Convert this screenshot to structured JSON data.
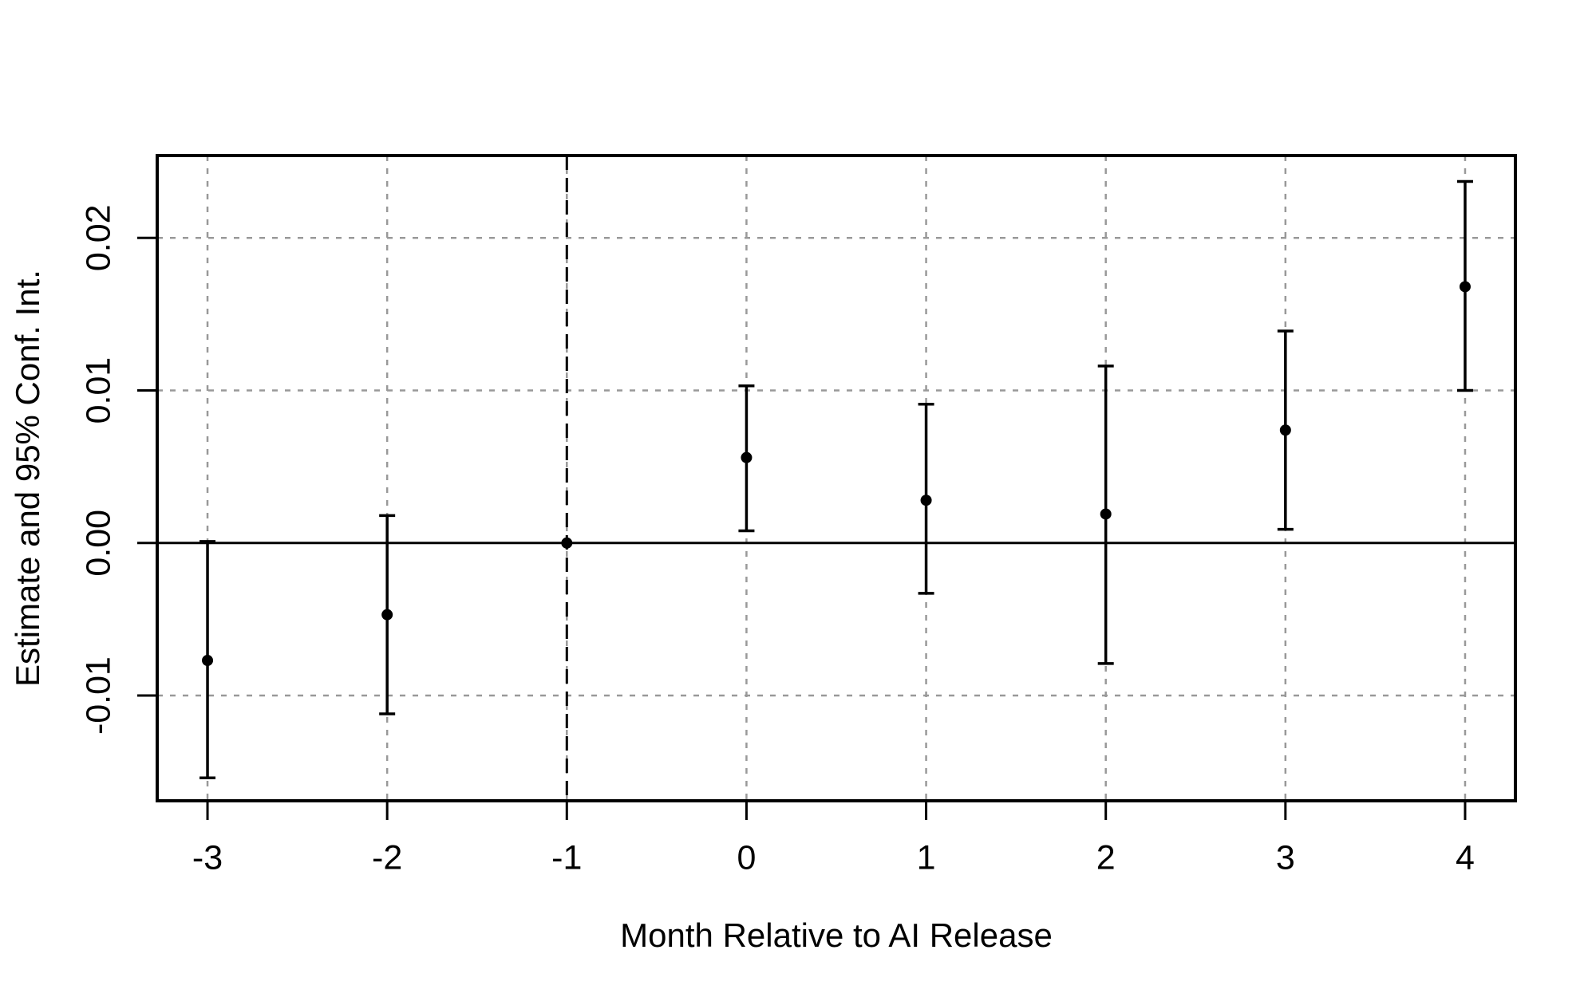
{
  "figure": {
    "background": "#ffffff"
  },
  "chart_data": {
    "type": "scatter",
    "subtype": "event-study-errorbars",
    "title": "",
    "xlabel": "Month Relative to AI Release",
    "ylabel": "Estimate and 95% Conf. Int.",
    "x": [
      -3,
      -2,
      -1,
      0,
      1,
      2,
      3,
      4
    ],
    "series": [
      {
        "name": "estimate",
        "values": [
          -0.0077,
          -0.0047,
          0.0,
          0.0056,
          0.0028,
          0.0019,
          0.0074,
          0.0168
        ]
      },
      {
        "name": "ci_lower_95",
        "values": [
          -0.0154,
          -0.0112,
          null,
          0.0008,
          -0.0033,
          -0.0079,
          0.0009,
          0.01
        ]
      },
      {
        "name": "ci_upper_95",
        "values": [
          0.0001,
          0.0018,
          null,
          0.0103,
          0.0091,
          0.0116,
          0.0139,
          0.0237
        ]
      }
    ],
    "x_tick_labels": [
      "-3",
      "-2",
      "-1",
      "0",
      "1",
      "2",
      "3",
      "4"
    ],
    "y_ticks": [
      -0.01,
      0,
      0.01,
      0.02
    ],
    "y_tick_labels": [
      "-0.01",
      "0.00",
      "0.01",
      "0.02"
    ],
    "xlim": [
      -3.28,
      4.28
    ],
    "ylim": [
      -0.0169,
      0.0254
    ],
    "grid": true,
    "grid_style": "dotted",
    "legend_position": "none",
    "reference_dashed_line_x": -1,
    "zero_line_y": 0,
    "colors": {
      "foreground": "#000000",
      "grid": "#999999",
      "background": "#ffffff"
    }
  }
}
